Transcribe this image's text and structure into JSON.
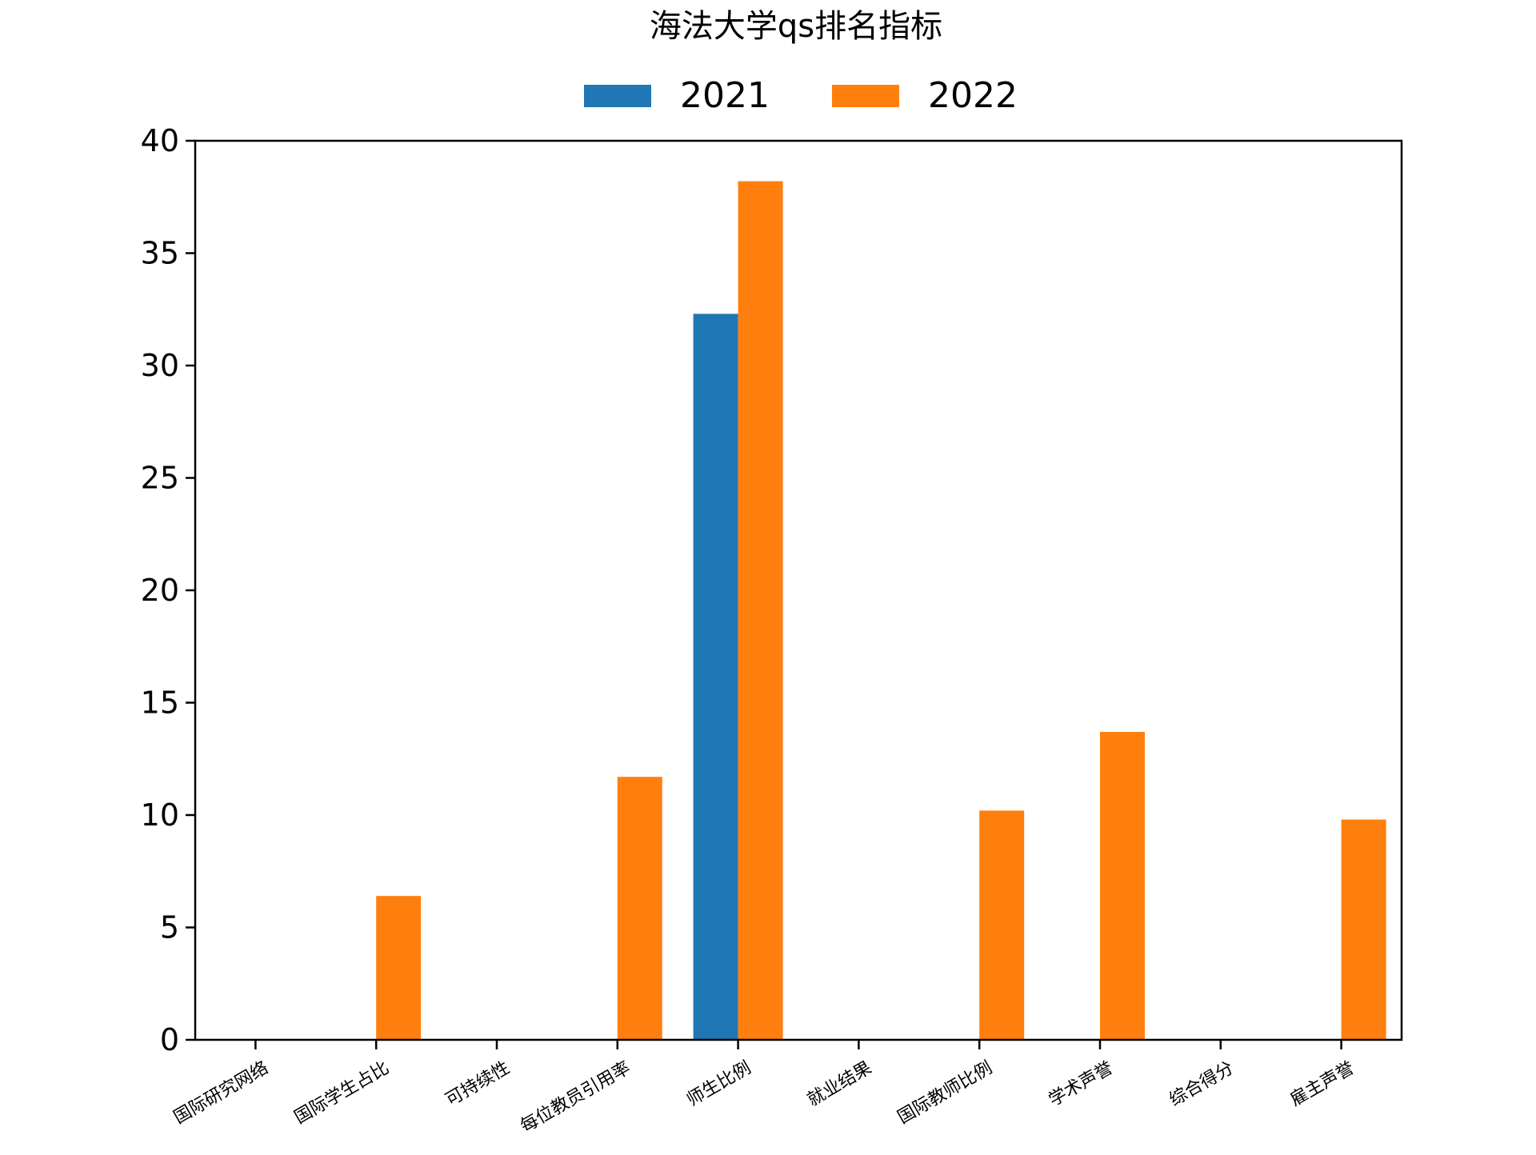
{
  "chart_data": {
    "type": "bar",
    "title": "海法大学qs排名指标",
    "xlabel": "",
    "ylabel": "",
    "categories": [
      "国际研究网络",
      "国际学生占比",
      "可持续性",
      "每位教员引用率",
      "师生比例",
      "就业结果",
      "国际教师比例",
      "学术声誉",
      "综合得分",
      "雇主声誉"
    ],
    "series": [
      {
        "name": "2021",
        "color": "#1f77b4",
        "values": [
          0,
          0,
          0,
          0,
          32.3,
          0,
          0,
          0,
          0,
          0
        ]
      },
      {
        "name": "2022",
        "color": "#ff7f0e",
        "values": [
          0,
          6.4,
          0,
          11.7,
          38.2,
          0,
          10.2,
          13.7,
          0,
          9.8
        ]
      }
    ],
    "ylim": [
      0,
      40
    ],
    "yticks": [
      "0",
      "5",
      "10",
      "15",
      "20",
      "25",
      "30",
      "35",
      "40"
    ],
    "grid": false,
    "legend_position": "top-center"
  }
}
